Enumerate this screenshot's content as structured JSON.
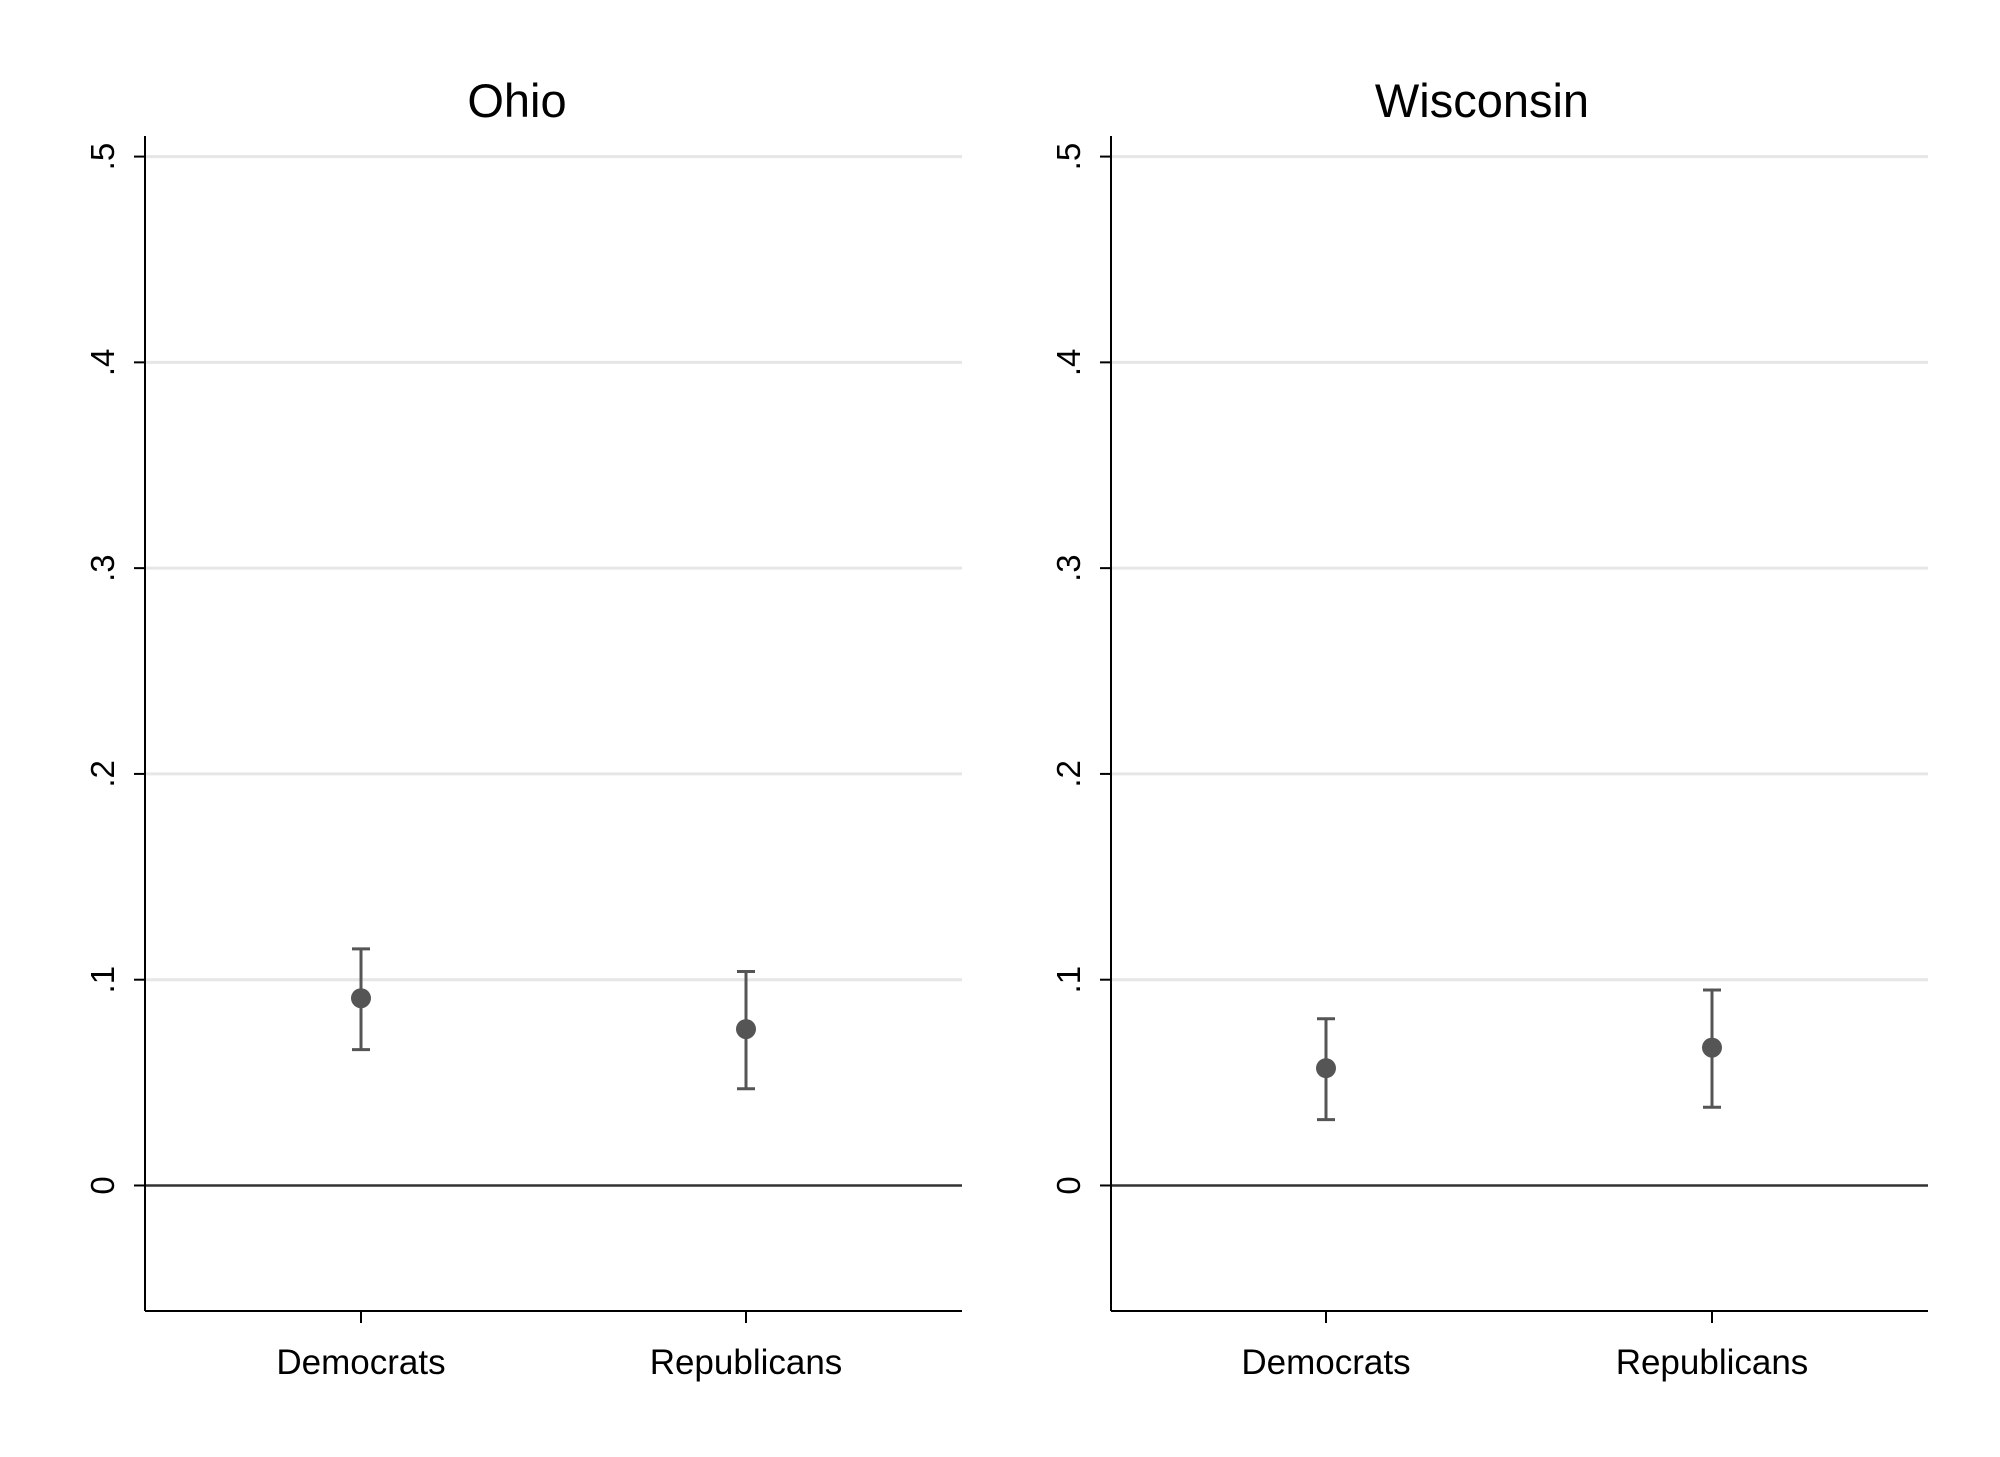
{
  "colors": {
    "background": "#ffffff",
    "axis": "#000000",
    "gridline": "#e6e6e6",
    "zero_line": "#333333",
    "marker": "#555555",
    "text": "#000000"
  },
  "chart_data": [
    {
      "type": "scatter",
      "title": "Ohio",
      "xlabel": "",
      "ylabel": "",
      "categories": [
        "Democrats",
        "Republicans"
      ],
      "values": [
        0.091,
        0.076
      ],
      "ci_low": [
        0.066,
        0.047
      ],
      "ci_high": [
        0.115,
        0.104
      ],
      "ylim": [
        -0.061,
        0.51
      ],
      "yticks": [
        0,
        0.1,
        0.2,
        0.3,
        0.4,
        0.5
      ],
      "ytick_labels": [
        "0",
        ".1",
        ".2",
        ".3",
        ".4",
        ".5"
      ],
      "grid": true,
      "reference_line": 0
    },
    {
      "type": "scatter",
      "title": "Wisconsin",
      "xlabel": "",
      "ylabel": "",
      "categories": [
        "Democrats",
        "Republicans"
      ],
      "values": [
        0.057,
        0.067
      ],
      "ci_low": [
        0.032,
        0.038
      ],
      "ci_high": [
        0.081,
        0.095
      ],
      "ylim": [
        -0.061,
        0.51
      ],
      "yticks": [
        0,
        0.1,
        0.2,
        0.3,
        0.4,
        0.5
      ],
      "ytick_labels": [
        "0",
        ".1",
        ".2",
        ".3",
        ".4",
        ".5"
      ],
      "grid": true,
      "reference_line": 0
    }
  ]
}
